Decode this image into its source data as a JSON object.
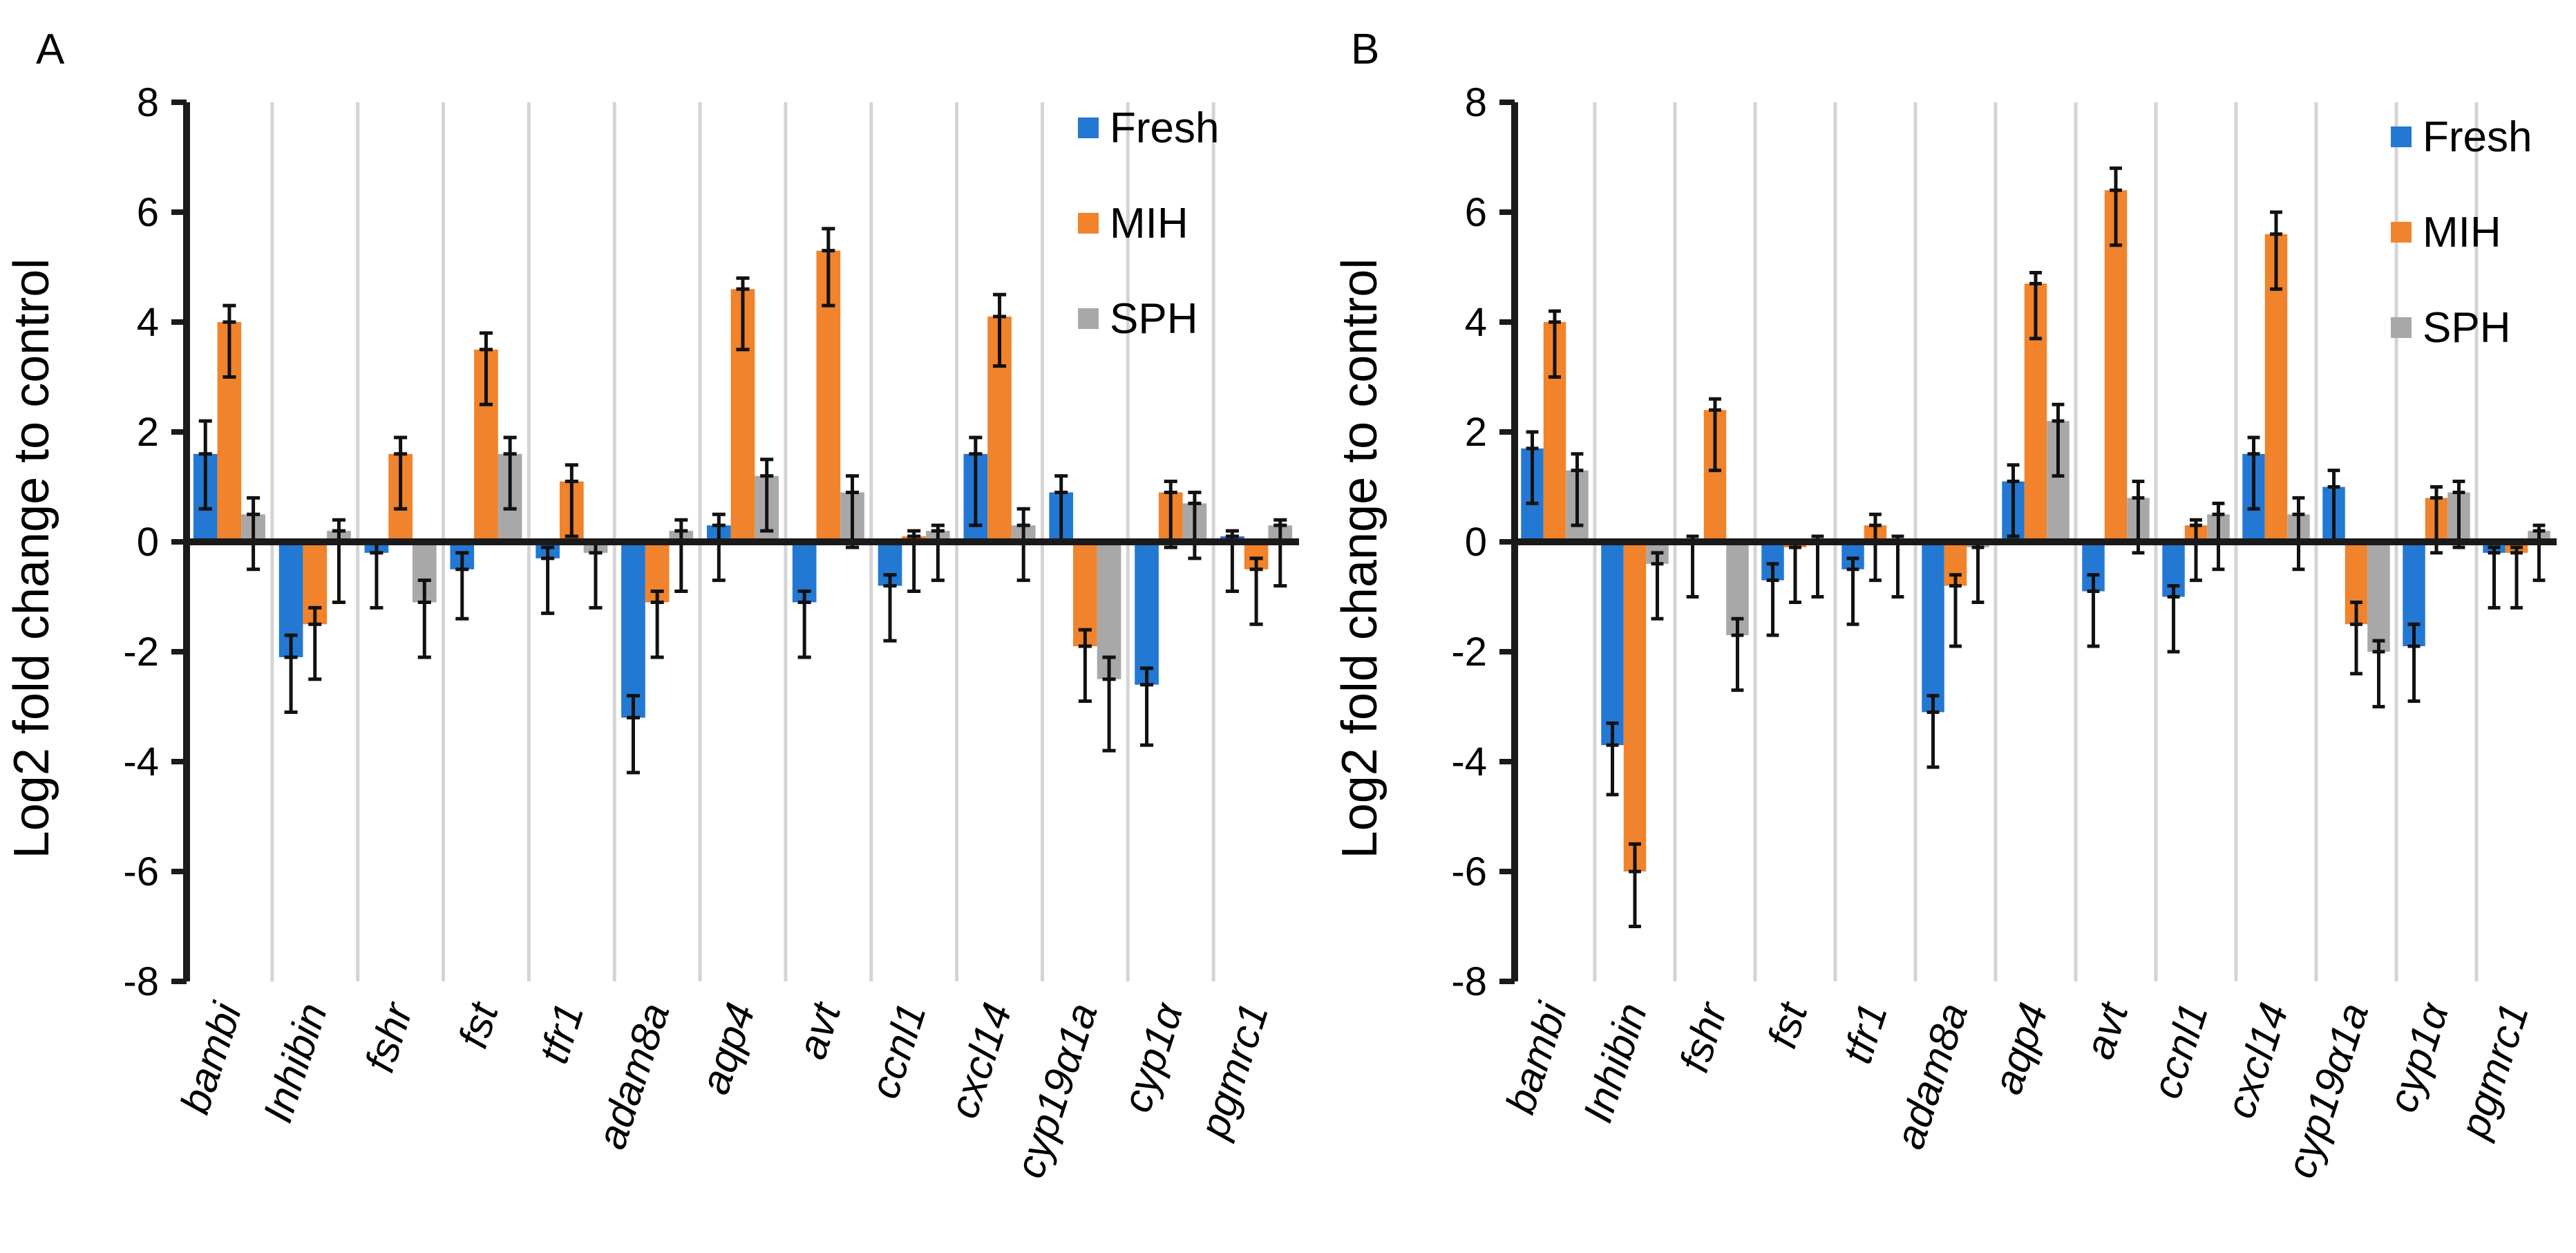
{
  "colors": {
    "Fresh": "#2378d3",
    "MIH": "#f0832b",
    "SPH": "#a8a8a8",
    "axis": "#1a1a1a",
    "divider": "#d4d4d4"
  },
  "chart_data": [
    {
      "panel_label": "A",
      "type": "bar",
      "ylabel": "Log2 fold change to control",
      "ylim": [
        -8,
        8
      ],
      "yticks": [
        8,
        6,
        4,
        2,
        0,
        -2,
        -4,
        -6,
        -8
      ],
      "legend": {
        "position": "top-right",
        "entries": [
          "Fresh",
          "MIH",
          "SPH"
        ]
      },
      "categories": [
        "bambi",
        "Inhibin",
        "fshr",
        "fst",
        "tfr1",
        "adam8a",
        "aqp4",
        "avt",
        "ccnl1",
        "cxcl14",
        "cyp19α1a",
        "cyp1α",
        "pgmrc1"
      ],
      "series": [
        {
          "name": "Fresh",
          "values": [
            1.6,
            -2.1,
            -0.2,
            -0.5,
            -0.3,
            -3.2,
            0.3,
            -1.1,
            -0.8,
            1.6,
            0.9,
            -2.6,
            0.1
          ],
          "errors": [
            0.6,
            0.4,
            0.2,
            0.3,
            0.2,
            0.4,
            0.2,
            0.2,
            0.2,
            0.3,
            0.3,
            0.3,
            0.1
          ]
        },
        {
          "name": "MIH",
          "values": [
            4.0,
            -1.5,
            1.6,
            3.5,
            1.1,
            -1.1,
            4.6,
            5.3,
            0.1,
            4.1,
            -1.9,
            0.9,
            -0.5
          ],
          "errors": [
            0.3,
            0.3,
            0.3,
            0.3,
            0.3,
            0.2,
            0.2,
            0.4,
            0.1,
            0.4,
            0.3,
            0.2,
            0.2
          ]
        },
        {
          "name": "SPH",
          "values": [
            0.5,
            0.2,
            -1.1,
            1.6,
            -0.2,
            0.2,
            1.2,
            0.9,
            0.2,
            0.3,
            -2.5,
            0.7,
            0.3
          ],
          "errors": [
            0.3,
            0.2,
            0.4,
            0.3,
            0.2,
            0.2,
            0.3,
            0.3,
            0.1,
            0.3,
            0.4,
            0.2,
            0.1
          ]
        }
      ],
      "error_low_ends": [
        [
          0.6,
          -3.1,
          -1.2,
          -1.4,
          -1.3,
          -4.2,
          -0.7,
          -2.1,
          -1.8,
          0.3,
          0.0,
          -3.7,
          -0.9
        ],
        [
          3.0,
          -2.5,
          0.6,
          2.5,
          0.1,
          -2.1,
          3.5,
          4.3,
          -0.9,
          3.2,
          -2.9,
          -0.1,
          -1.5
        ],
        [
          -0.5,
          -1.1,
          -2.1,
          0.6,
          -1.2,
          -0.9,
          0.2,
          -0.1,
          -0.7,
          -0.7,
          -3.8,
          -0.3,
          -0.8
        ]
      ]
    },
    {
      "panel_label": "B",
      "type": "bar",
      "ylabel": "Log2 fold change to control",
      "ylim": [
        -8,
        8
      ],
      "yticks": [
        8,
        6,
        4,
        2,
        0,
        -2,
        -4,
        -6,
        -8
      ],
      "legend": {
        "position": "top-right",
        "entries": [
          "Fresh",
          "MIH",
          "SPH"
        ]
      },
      "categories": [
        "bambi",
        "Inhibin",
        "fshr",
        "fst",
        "tfr1",
        "adam8a",
        "aqp4",
        "avt",
        "ccnl1",
        "cxcl14",
        "cyp19α1a",
        "cyp1α",
        "pgmrc1"
      ],
      "series": [
        {
          "name": "Fresh",
          "values": [
            1.7,
            -3.7,
            0.0,
            -0.7,
            -0.5,
            -3.1,
            1.1,
            -0.9,
            -1.0,
            1.6,
            1.0,
            -1.9,
            -0.2
          ],
          "errors": [
            0.3,
            0.4,
            0.1,
            0.3,
            0.2,
            0.3,
            0.3,
            0.3,
            0.2,
            0.3,
            0.3,
            0.4,
            0.1
          ]
        },
        {
          "name": "MIH",
          "values": [
            4.0,
            -6.0,
            2.4,
            -0.1,
            0.3,
            -0.8,
            4.7,
            6.4,
            0.3,
            5.6,
            -1.5,
            0.8,
            -0.2
          ],
          "errors": [
            0.2,
            0.5,
            0.2,
            0.1,
            0.2,
            0.2,
            0.2,
            0.4,
            0.1,
            0.4,
            0.4,
            0.2,
            0.1
          ]
        },
        {
          "name": "SPH",
          "values": [
            1.3,
            -0.4,
            -1.7,
            0.0,
            0.0,
            -0.1,
            2.2,
            0.8,
            0.5,
            0.5,
            -2.0,
            0.9,
            0.2
          ],
          "errors": [
            0.3,
            0.2,
            0.3,
            0.1,
            0.1,
            0.1,
            0.3,
            0.3,
            0.2,
            0.3,
            0.2,
            0.2,
            0.1
          ]
        }
      ],
      "error_low_ends": [
        [
          0.7,
          -4.6,
          -1.0,
          -1.7,
          -1.5,
          -4.1,
          0.1,
          -1.9,
          -2.0,
          0.6,
          0.0,
          -2.9,
          -1.2
        ],
        [
          3.0,
          -7.0,
          1.3,
          -1.1,
          -0.7,
          -1.9,
          3.7,
          5.4,
          -0.7,
          4.6,
          -2.4,
          -0.2,
          -1.2
        ],
        [
          0.3,
          -1.4,
          -2.7,
          -1.0,
          -1.0,
          -1.1,
          1.2,
          -0.2,
          -0.5,
          -0.5,
          -3.0,
          -0.1,
          -0.7
        ]
      ]
    }
  ]
}
